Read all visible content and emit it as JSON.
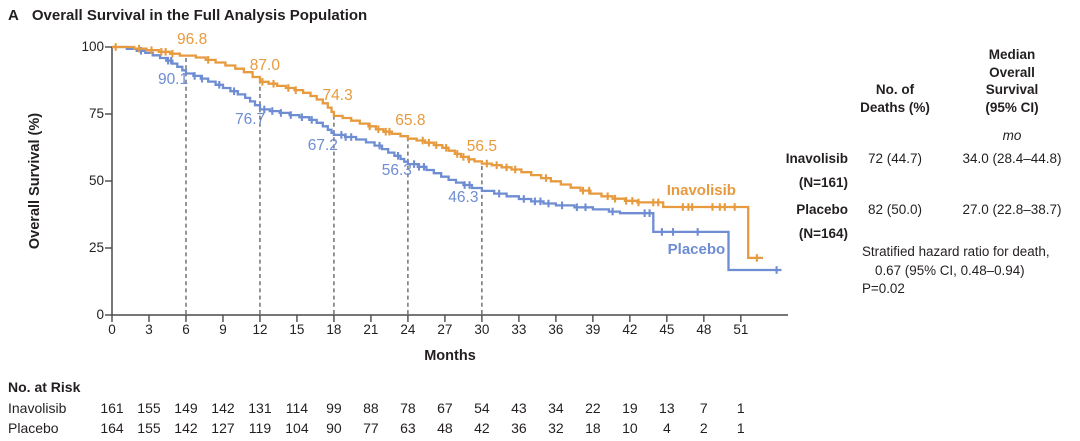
{
  "title": {
    "panel_letter": "A",
    "text": "Overall Survival in the Full Analysis Population"
  },
  "axes": {
    "y_label": "Overall Survival (%)",
    "x_label": "Months"
  },
  "colors": {
    "inavolisib": "#E79A3E",
    "placebo": "#6E8DD2",
    "axis": "#4a4a4b",
    "text": "#231f20",
    "dashed_guide": "#3f3f3f",
    "background": "#ffffff"
  },
  "chart_data": {
    "type": "line",
    "subtype": "kaplan-meier-step",
    "title": "Overall Survival in the Full Analysis Population",
    "xlabel": "Months",
    "ylabel": "Overall Survival (%)",
    "xlim": [
      0,
      54.8
    ],
    "ylim": [
      0,
      100
    ],
    "grid": false,
    "x_ticks": [
      0,
      3,
      6,
      9,
      12,
      15,
      18,
      21,
      24,
      27,
      30,
      33,
      36,
      39,
      42,
      45,
      48,
      51
    ],
    "y_ticks": [
      0,
      25,
      50,
      75,
      100
    ],
    "dashed_guide_months": [
      6,
      12,
      18,
      24,
      30
    ],
    "series": [
      {
        "name": "Placebo",
        "color": "#6E8DD2",
        "end_month": 54.3,
        "landmark_survival_pct": {
          "6": 90.1,
          "12": 76.7,
          "18": 67.2,
          "24": 56.3,
          "30": 46.3
        },
        "steps": [
          [
            0,
            100
          ],
          [
            1.2,
            99.3
          ],
          [
            2,
            98.6
          ],
          [
            2.7,
            97.8
          ],
          [
            3.3,
            96.9
          ],
          [
            3.9,
            95.9
          ],
          [
            4.4,
            94.9
          ],
          [
            4.9,
            93.8
          ],
          [
            5.3,
            92.6
          ],
          [
            5.7,
            91.3
          ],
          [
            6,
            90.1
          ],
          [
            6.6,
            89.2
          ],
          [
            7.2,
            88.2
          ],
          [
            7.8,
            87.1
          ],
          [
            8.4,
            85.9
          ],
          [
            9,
            84.7
          ],
          [
            9.6,
            83.5
          ],
          [
            10.2,
            82.3
          ],
          [
            10.8,
            81
          ],
          [
            11.2,
            79.7
          ],
          [
            11.6,
            78.3
          ],
          [
            12,
            76.7
          ],
          [
            12.8,
            76.1
          ],
          [
            13.6,
            75.4
          ],
          [
            14.4,
            74.6
          ],
          [
            15.2,
            73.8
          ],
          [
            16,
            72.8
          ],
          [
            16.6,
            71.7
          ],
          [
            17.1,
            70.4
          ],
          [
            17.5,
            69.1
          ],
          [
            17.8,
            68
          ],
          [
            18,
            67.2
          ],
          [
            18.9,
            66.4
          ],
          [
            19.8,
            65.5
          ],
          [
            20.6,
            64.4
          ],
          [
            21.3,
            63.2
          ],
          [
            21.9,
            61.9
          ],
          [
            22.4,
            60.6
          ],
          [
            22.9,
            59.4
          ],
          [
            23.4,
            58.2
          ],
          [
            23.7,
            57.2
          ],
          [
            24,
            56.3
          ],
          [
            24.8,
            55.3
          ],
          [
            25.5,
            54.1
          ],
          [
            26.1,
            52.9
          ],
          [
            26.7,
            51.6
          ],
          [
            27.3,
            50.4
          ],
          [
            27.9,
            49.4
          ],
          [
            28.5,
            48.5
          ],
          [
            29.2,
            47.4
          ],
          [
            30,
            46.3
          ],
          [
            31,
            45.3
          ],
          [
            32,
            44.3
          ],
          [
            33,
            43.3
          ],
          [
            34,
            42.4
          ],
          [
            35,
            41.6
          ],
          [
            36,
            40.9
          ],
          [
            37.5,
            40.2
          ],
          [
            39,
            39.4
          ],
          [
            40.3,
            38.6
          ],
          [
            41.2,
            38
          ],
          [
            43.9,
            31
          ],
          [
            50,
            16.8
          ]
        ],
        "censor_months": [
          2.35,
          4.55,
          4.8,
          6.7,
          7.3,
          8.7,
          9.9,
          12.35,
          13,
          13.7,
          14.5,
          15.4,
          16.2,
          18.6,
          18.95,
          19.4,
          21.7,
          23.2,
          24.5,
          24.9,
          25.3,
          28.6,
          29,
          31.4,
          33.4,
          34.3,
          34.75,
          35.4,
          36.5,
          37.7,
          38.4,
          40.6,
          43.2,
          43.6,
          44.6,
          45.5,
          47.5,
          53.9
        ],
        "value_labels": [
          {
            "text": "90.1",
            "month": 4.95,
            "pct": 87.7
          },
          {
            "text": "76.7",
            "month": 11.2,
            "pct": 72.8
          },
          {
            "text": "67.2",
            "month": 17.1,
            "pct": 63.1
          },
          {
            "text": "56.3",
            "month": 23.1,
            "pct": 53.7
          },
          {
            "text": "46.3",
            "month": 28.5,
            "pct": 43.7
          }
        ],
        "name_label": {
          "month": 47.4,
          "pct": 24.3
        }
      },
      {
        "name": "Inavolisib",
        "color": "#E79A3E",
        "end_month": 52.8,
        "landmark_survival_pct": {
          "6": 96.8,
          "12": 87.0,
          "18": 74.3,
          "24": 65.8,
          "30": 56.5
        },
        "steps": [
          [
            0,
            100
          ],
          [
            1.8,
            99.4
          ],
          [
            2.8,
            98.8
          ],
          [
            3.8,
            98.2
          ],
          [
            4.7,
            97.5
          ],
          [
            5.5,
            96.8
          ],
          [
            6.8,
            96.1
          ],
          [
            7.6,
            95.2
          ],
          [
            8.4,
            94.2
          ],
          [
            9.2,
            93.1
          ],
          [
            10,
            91.9
          ],
          [
            10.7,
            90.6
          ],
          [
            11.4,
            88.8
          ],
          [
            12,
            87
          ],
          [
            12.7,
            86.3
          ],
          [
            13.4,
            85.5
          ],
          [
            14.1,
            84.7
          ],
          [
            14.8,
            83.9
          ],
          [
            15.5,
            82.9
          ],
          [
            16.1,
            81.7
          ],
          [
            16.6,
            80.4
          ],
          [
            17.1,
            79
          ],
          [
            17.5,
            77.4
          ],
          [
            17.8,
            75.8
          ],
          [
            18,
            74.3
          ],
          [
            18.7,
            73.5
          ],
          [
            19.4,
            72.5
          ],
          [
            20.1,
            71.4
          ],
          [
            20.8,
            70.4
          ],
          [
            21.4,
            69.3
          ],
          [
            22,
            68.4
          ],
          [
            22.7,
            67.6
          ],
          [
            23.4,
            66.7
          ],
          [
            24,
            65.8
          ],
          [
            24.7,
            65.1
          ],
          [
            25.4,
            64.3
          ],
          [
            26.1,
            63.4
          ],
          [
            26.8,
            62.4
          ],
          [
            27.3,
            61.3
          ],
          [
            27.8,
            60.1
          ],
          [
            28.3,
            59
          ],
          [
            28.9,
            58.1
          ],
          [
            29.4,
            57.3
          ],
          [
            30,
            56.5
          ],
          [
            30.8,
            55.9
          ],
          [
            31.6,
            55.1
          ],
          [
            32.4,
            54.3
          ],
          [
            33.2,
            53.3
          ],
          [
            34,
            52.2
          ],
          [
            34.8,
            51.1
          ],
          [
            35.6,
            49.9
          ],
          [
            36.4,
            48.7
          ],
          [
            37.2,
            47.5
          ],
          [
            38,
            46.4
          ],
          [
            38.8,
            45.3
          ],
          [
            39.7,
            44.3
          ],
          [
            40.6,
            43.4
          ],
          [
            41.6,
            42.6
          ],
          [
            42.6,
            42
          ],
          [
            44.7,
            40.3
          ],
          [
            51.6,
            21.3
          ]
        ],
        "censor_months": [
          0.3,
          2.2,
          3.2,
          4,
          4.35,
          4.9,
          7.8,
          12.2,
          13.1,
          14.3,
          14.9,
          20.9,
          21.6,
          22.2,
          22.5,
          25.2,
          25.7,
          26.3,
          27.1,
          28,
          28.5,
          28.95,
          30.4,
          31.2,
          32,
          32.7,
          35.2,
          38.2,
          38.7,
          40.2,
          40.8,
          41.7,
          42.2,
          42.7,
          43.9,
          44.3,
          46.3,
          46.75,
          47.05,
          48.7,
          49.3,
          49.7,
          50.5,
          52.3
        ],
        "value_labels": [
          {
            "text": "96.8",
            "month": 6.5,
            "pct": 102.6
          },
          {
            "text": "87.0",
            "month": 12.4,
            "pct": 92.9
          },
          {
            "text": "74.3",
            "month": 18.3,
            "pct": 81.7
          },
          {
            "text": "65.8",
            "month": 24.2,
            "pct": 72.4
          },
          {
            "text": "56.5",
            "month": 30.0,
            "pct": 62.7
          }
        ],
        "name_label": {
          "month": 47.8,
          "pct": 46.3
        }
      }
    ]
  },
  "side_table": {
    "col_deaths_header": [
      "No. of",
      "Deaths (%)"
    ],
    "col_median_header": [
      "Median",
      "Overall",
      "Survival",
      "(95% CI)"
    ],
    "unit": "mo",
    "rows": [
      {
        "label": "Inavolisib",
        "n": "(N=161)",
        "deaths": "72 (44.7)",
        "median": "34.0 (28.4–44.8)"
      },
      {
        "label": "Placebo",
        "n": "(N=164)",
        "deaths": "82 (50.0)",
        "median": "27.0 (22.8–38.7)"
      }
    ],
    "footnote_lines": [
      "Stratified hazard ratio for death,",
      "0.67 (95% CI, 0.48–0.94)",
      "P=0.02"
    ]
  },
  "risk_table": {
    "header": "No. at Risk",
    "months": [
      0,
      3,
      6,
      9,
      12,
      15,
      18,
      21,
      24,
      27,
      30,
      33,
      36,
      39,
      42,
      45,
      48,
      51
    ],
    "rows": [
      {
        "label": "Inavolisib",
        "values": [
          161,
          155,
          149,
          142,
          131,
          114,
          99,
          88,
          78,
          67,
          54,
          43,
          34,
          22,
          19,
          13,
          7,
          1
        ]
      },
      {
        "label": "Placebo",
        "values": [
          164,
          155,
          142,
          127,
          119,
          104,
          90,
          77,
          63,
          48,
          42,
          36,
          32,
          18,
          10,
          4,
          2,
          1
        ]
      }
    ]
  }
}
